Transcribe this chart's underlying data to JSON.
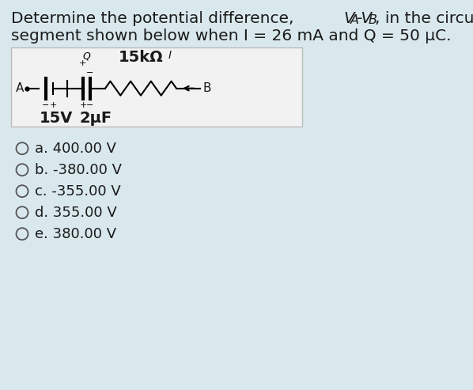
{
  "bg_color": "#d9e8ed",
  "circuit_box_facecolor": "#f2f2f2",
  "circuit_box_edgecolor": "#bbbbbb",
  "title_part1": "Determine the potential difference, ",
  "title_VA": "V",
  "title_sub_A": "A",
  "title_mid": "-V",
  "title_sub_B": "B",
  "title_end": ", in the circuit",
  "title_line2": "segment shown below when I = 26 mA and Q = 50 μC.",
  "circuit_voltage": "15V",
  "circuit_capacitor": "2μF",
  "circuit_resistor": "15kΩ",
  "circuit_I": "I",
  "circuit_Q": "Q",
  "choices": [
    "a. 400.00 V",
    "b. -380.00 V",
    "c. -355.00 V",
    "d. 355.00 V",
    "e. 380.00 V"
  ],
  "text_color": "#1a1a1a",
  "choice_fontsize": 13,
  "title_fontsize": 14.5
}
